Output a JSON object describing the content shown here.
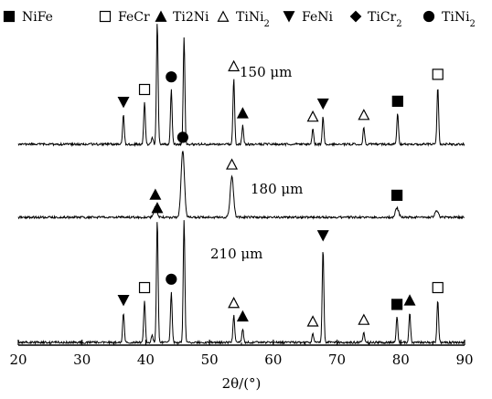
{
  "chart_data": {
    "type": "line",
    "xlabel": "2θ/(°)",
    "xlim": [
      20,
      90
    ],
    "x_ticks": [
      "20",
      "30",
      "40",
      "50",
      "60",
      "70",
      "80",
      "90"
    ],
    "legend": [
      {
        "marker": "square-filled",
        "label": "NiFe"
      },
      {
        "marker": "square-open",
        "label": "FeCr"
      },
      {
        "marker": "triangle-up-filled",
        "label": "Ti2Ni"
      },
      {
        "marker": "triangle-up-open",
        "label": "TiNi2"
      },
      {
        "marker": "triangle-down-filled",
        "label": "FeNi"
      },
      {
        "marker": "diamond-filled",
        "label": "TiCr2"
      },
      {
        "marker": "circle-filled",
        "label": "TiNi2"
      }
    ],
    "series": [
      {
        "name": "150 μm",
        "peaks": [
          {
            "x": 36.5,
            "h": 0.35,
            "phase": "triangle-down-filled"
          },
          {
            "x": 39.8,
            "h": 0.5,
            "phase": "square-open"
          },
          {
            "x": 41.0,
            "h": 0.09
          },
          {
            "x": 41.8,
            "h": 1.45
          },
          {
            "x": 44.0,
            "h": 0.65,
            "phase": "circle-filled"
          },
          {
            "x": 46.0,
            "h": 1.28
          },
          {
            "x": 53.8,
            "h": 0.78,
            "phase": "triangle-up-open"
          },
          {
            "x": 55.2,
            "h": 0.22,
            "phase": "triangle-up-filled"
          },
          {
            "x": 66.2,
            "h": 0.18,
            "phase": "triangle-up-open"
          },
          {
            "x": 67.8,
            "h": 0.33,
            "phase": "triangle-down-filled"
          },
          {
            "x": 74.2,
            "h": 0.2,
            "phase": "triangle-up-open"
          },
          {
            "x": 79.5,
            "h": 0.36,
            "phase": "square-filled"
          },
          {
            "x": 85.8,
            "h": 0.68,
            "phase": "square-open"
          }
        ]
      },
      {
        "name": "180 μm",
        "peaks": [
          {
            "x": 41.5,
            "h": 0.12,
            "phase": "triangle-up-filled"
          },
          {
            "x": 45.8,
            "h": 0.8,
            "phase": "circle-filled"
          },
          {
            "x": 53.5,
            "h": 0.48,
            "phase": "triangle-up-open"
          },
          {
            "x": 79.4,
            "h": 0.11,
            "phase": "square-filled"
          },
          {
            "x": 85.6,
            "h": 0.08
          }
        ]
      },
      {
        "name": "210 μm",
        "peaks": [
          {
            "x": 36.5,
            "h": 0.35,
            "phase": "triangle-down-filled"
          },
          {
            "x": 39.8,
            "h": 0.5,
            "phase": "square-open"
          },
          {
            "x": 41.0,
            "h": 0.09
          },
          {
            "x": 41.8,
            "h": 1.45,
            "phase": "triangle-up-filled"
          },
          {
            "x": 44.0,
            "h": 0.6,
            "phase": "circle-filled"
          },
          {
            "x": 46.0,
            "h": 1.45
          },
          {
            "x": 53.8,
            "h": 0.32,
            "phase": "triangle-up-open"
          },
          {
            "x": 55.2,
            "h": 0.16,
            "phase": "triangle-up-filled"
          },
          {
            "x": 66.2,
            "h": 0.1,
            "phase": "triangle-up-open"
          },
          {
            "x": 67.8,
            "h": 1.12,
            "phase": "triangle-down-filled"
          },
          {
            "x": 74.2,
            "h": 0.12,
            "phase": "triangle-up-open"
          },
          {
            "x": 79.4,
            "h": 0.3,
            "phase": "square-filled"
          },
          {
            "x": 81.4,
            "h": 0.35,
            "phase": "triangle-up-filled"
          },
          {
            "x": 85.8,
            "h": 0.5,
            "phase": "square-open"
          }
        ]
      }
    ]
  }
}
